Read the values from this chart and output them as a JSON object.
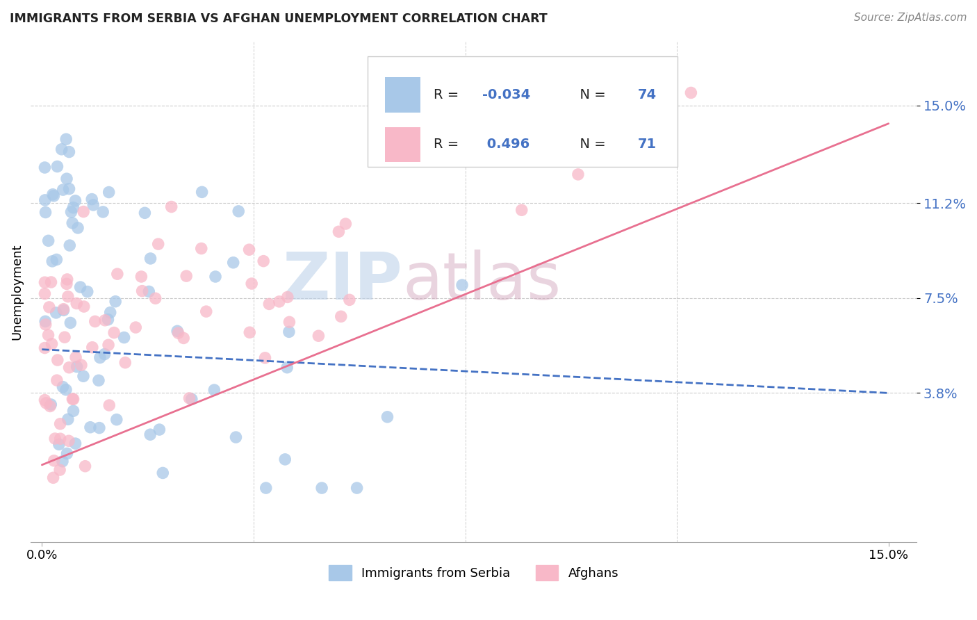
{
  "title": "IMMIGRANTS FROM SERBIA VS AFGHAN UNEMPLOYMENT CORRELATION CHART",
  "source": "Source: ZipAtlas.com",
  "ylabel": "Unemployment",
  "ytick_vals": [
    0.038,
    0.075,
    0.112,
    0.15
  ],
  "ytick_labels": [
    "3.8%",
    "7.5%",
    "11.2%",
    "15.0%"
  ],
  "xlim": [
    -0.002,
    0.155
  ],
  "ylim": [
    -0.02,
    0.175
  ],
  "serbia_color": "#a8c8e8",
  "afghan_color": "#f8b8c8",
  "serbia_line_color": "#4472c4",
  "afghan_line_color": "#e87090",
  "serbia_R": -0.034,
  "serbia_N": 74,
  "afghan_R": 0.496,
  "afghan_N": 71,
  "legend_label_serbia": "Immigrants from Serbia",
  "legend_label_afghan": "Afghans",
  "watermark_zip": "ZIP",
  "watermark_atlas": "atlas",
  "serbia_line_start_y": 0.055,
  "serbia_line_end_y": 0.038,
  "afghan_line_start_y": 0.01,
  "afghan_line_end_y": 0.143
}
